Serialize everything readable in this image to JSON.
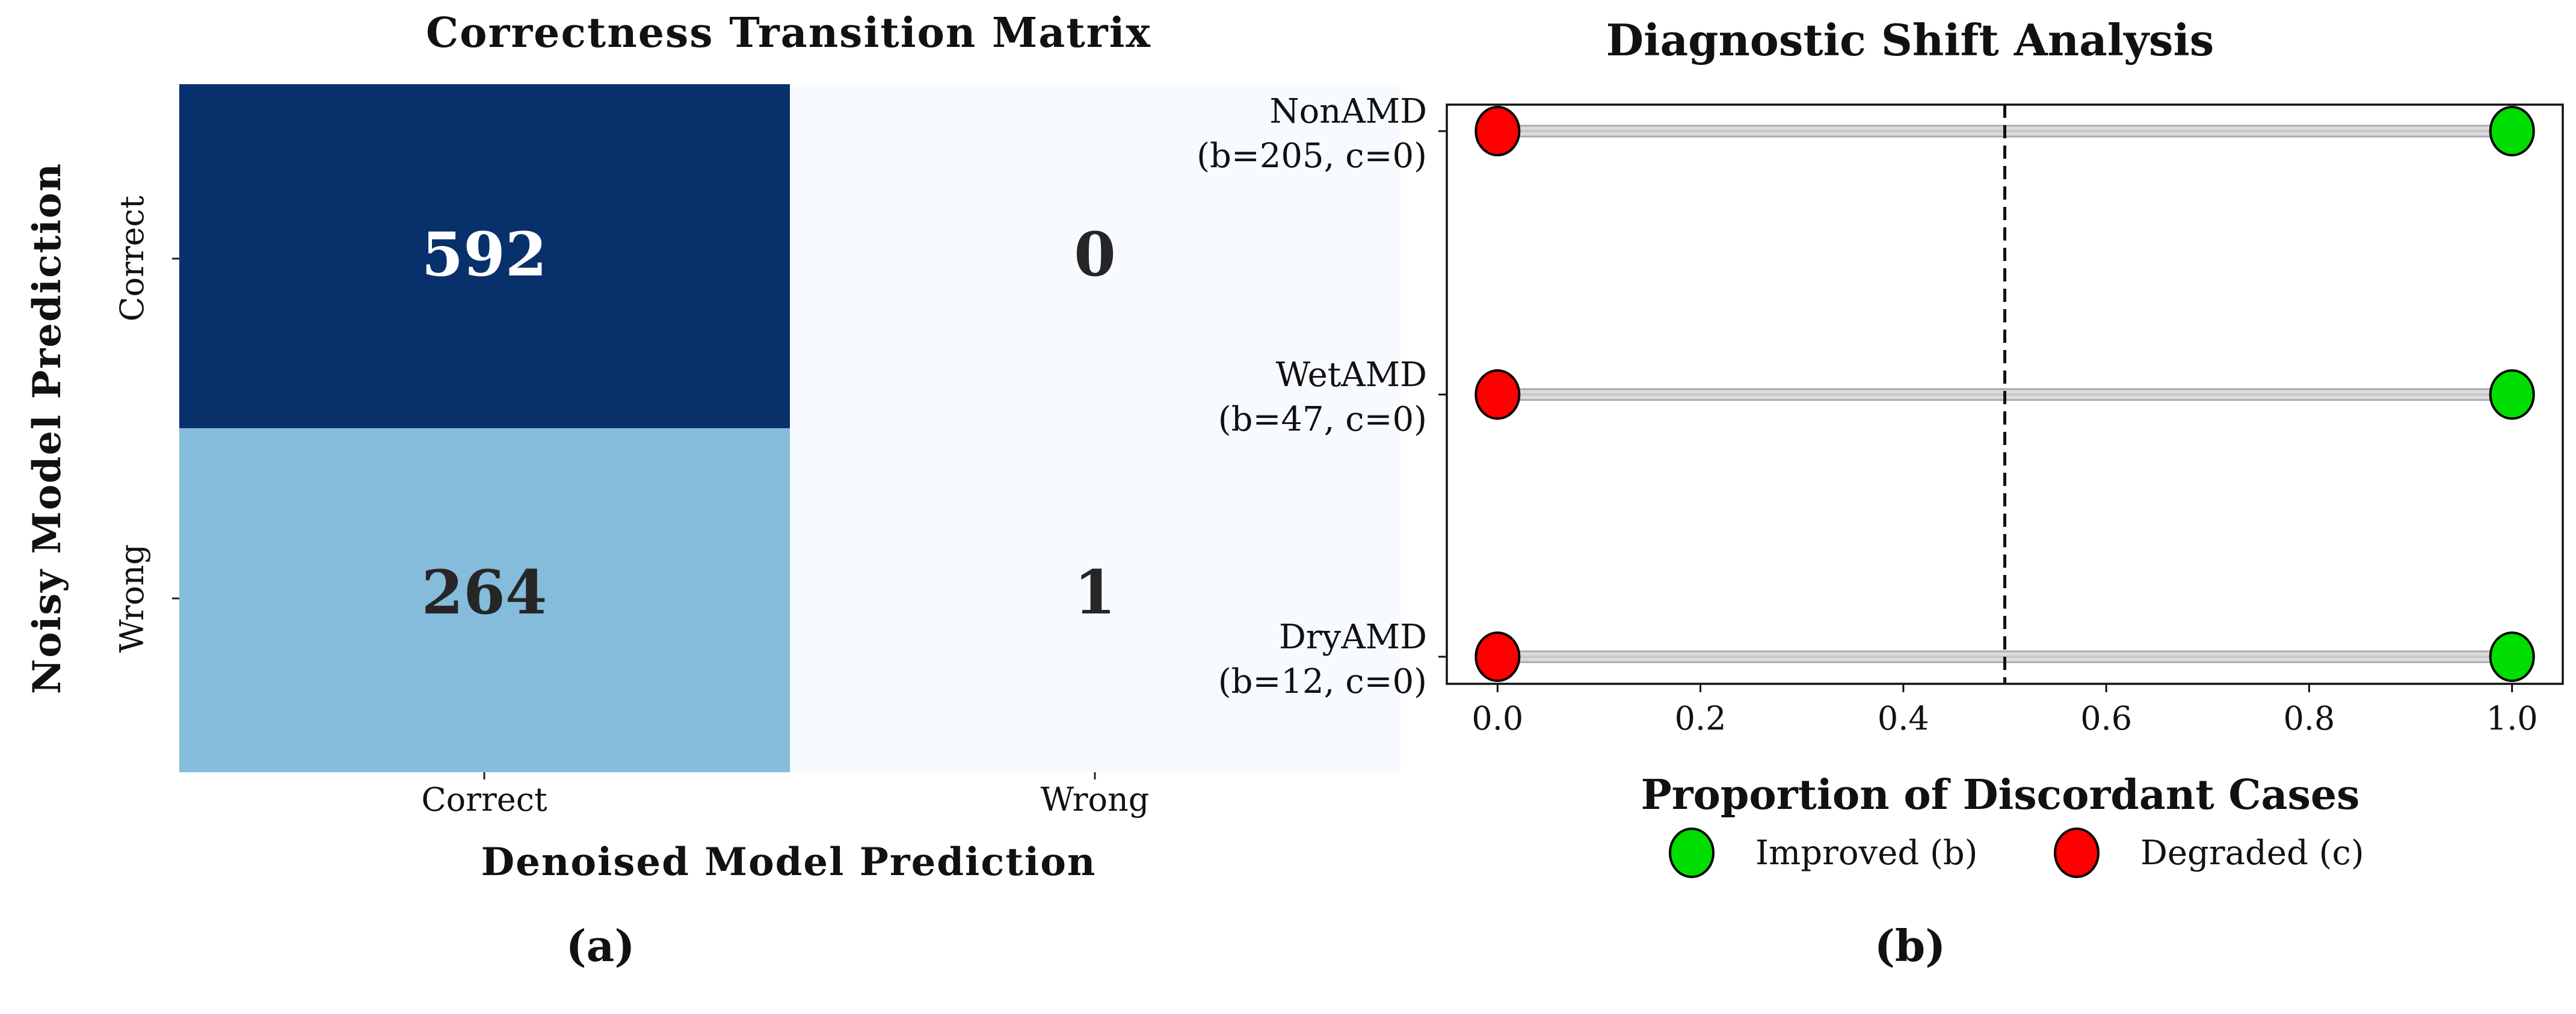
{
  "chart_data": [
    {
      "type": "heatmap",
      "title": "Correctness Transition Matrix",
      "xlabel": "Denoised Model Prediction",
      "ylabel": "Noisy Model Prediction",
      "x_categories": [
        "Correct",
        "Wrong"
      ],
      "y_categories": [
        "Correct",
        "Wrong"
      ],
      "values": [
        [
          592,
          0
        ],
        [
          264,
          1
        ]
      ],
      "colormap": "Blues",
      "colors": {
        "high": "#08306b",
        "mid": "#84bbdc",
        "low": "#f7fbff"
      },
      "panel_label": "(a)"
    },
    {
      "type": "scatter",
      "title": "Diagnostic Shift Analysis",
      "xlabel": "Proportion of Discordant Cases",
      "xlim": [
        -0.05,
        1.05
      ],
      "x_ticks": [
        0.0,
        0.2,
        0.4,
        0.6,
        0.8,
        1.0
      ],
      "x_tick_labels": [
        "0.0",
        "0.2",
        "0.4",
        "0.6",
        "0.8",
        "1.0"
      ],
      "reference_line_x": 0.5,
      "categories": [
        {
          "name": "NonAMD",
          "detail": "(b=205, c=0)",
          "improved": 1.0,
          "degraded": 0.0
        },
        {
          "name": "WetAMD",
          "detail": "(b=47, c=0)",
          "improved": 1.0,
          "degraded": 0.0
        },
        {
          "name": "DryAMD",
          "detail": "(b=12, c=0)",
          "improved": 1.0,
          "degraded": 0.0
        }
      ],
      "legend": [
        {
          "label": "Improved (b)",
          "color": "#00dd00"
        },
        {
          "label": "Degraded (c)",
          "color": "#ff0000"
        }
      ],
      "panel_label": "(b)"
    }
  ]
}
